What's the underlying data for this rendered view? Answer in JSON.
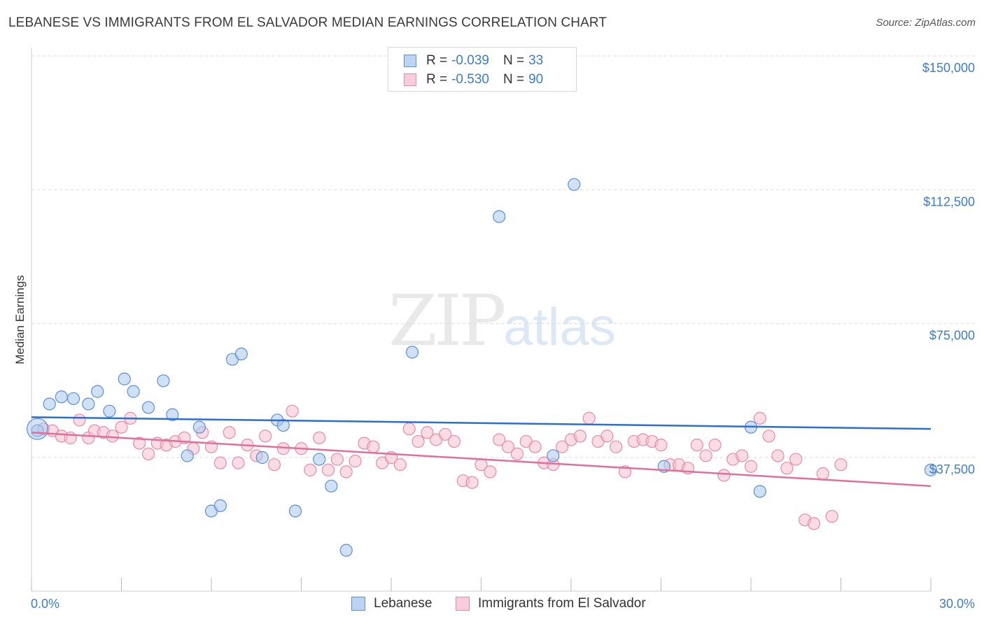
{
  "title": "LEBANESE VS IMMIGRANTS FROM EL SALVADOR MEDIAN EARNINGS CORRELATION CHART",
  "source": "Source: ZipAtlas.com",
  "watermark": {
    "zip": "ZIP",
    "atlas": "atlas"
  },
  "legend": {
    "rows": [
      {
        "r_label": "R =",
        "r_value": "-0.039",
        "n_label": "N =",
        "n_value": "33"
      },
      {
        "r_label": "R =",
        "r_value": "-0.530",
        "n_label": "N =",
        "n_value": "90"
      }
    ]
  },
  "bottom_legend": [
    "Lebanese",
    "Immigrants from El Salvador"
  ],
  "colors": {
    "blue_fill": "#a9c8ee",
    "blue_stroke": "#5b8fd6",
    "blue_line": "#2b6fd1",
    "pink_fill": "#f6bfd0",
    "pink_stroke": "#e88aa8",
    "pink_line": "#e0709a",
    "tick_text": "#3d7cc9",
    "grid": "#d9d9d9"
  },
  "chart_data": {
    "type": "scatter",
    "title": "LEBANESE VS IMMIGRANTS FROM EL SALVADOR MEDIAN EARNINGS CORRELATION CHART",
    "xlabel": "",
    "ylabel": "Median Earnings",
    "xlim": [
      0,
      30
    ],
    "ylim": [
      0,
      155000
    ],
    "x_tick_labels": [
      "0.0%",
      "30.0%"
    ],
    "y_ticks": [
      37500,
      75000,
      112500,
      150000
    ],
    "y_tick_labels": [
      "$37,500",
      "$75,000",
      "$112,500",
      "$150,000"
    ],
    "series": [
      {
        "name": "Lebanese",
        "r": -0.039,
        "n": 33,
        "trend": {
          "x": [
            0,
            30
          ],
          "y": [
            48800,
            45500
          ]
        },
        "points": [
          [
            0.2,
            45000
          ],
          [
            0.6,
            52500
          ],
          [
            1.0,
            54500
          ],
          [
            1.4,
            54000
          ],
          [
            1.9,
            52500
          ],
          [
            2.2,
            56000
          ],
          [
            2.6,
            50500
          ],
          [
            3.1,
            59500
          ],
          [
            3.4,
            56000
          ],
          [
            3.9,
            51500
          ],
          [
            4.4,
            59000
          ],
          [
            4.7,
            49500
          ],
          [
            5.2,
            38000
          ],
          [
            5.6,
            46000
          ],
          [
            6.0,
            22500
          ],
          [
            6.3,
            24000
          ],
          [
            6.7,
            65000
          ],
          [
            7.0,
            66500
          ],
          [
            7.7,
            37500
          ],
          [
            8.2,
            48000
          ],
          [
            8.4,
            46500
          ],
          [
            8.8,
            22500
          ],
          [
            9.6,
            37000
          ],
          [
            10.0,
            29500
          ],
          [
            10.5,
            11500
          ],
          [
            12.7,
            67000
          ],
          [
            15.6,
            105000
          ],
          [
            17.4,
            38000
          ],
          [
            18.1,
            114000
          ],
          [
            21.1,
            35000
          ],
          [
            24.0,
            46000
          ],
          [
            24.3,
            28000
          ],
          [
            30.0,
            34000
          ]
        ]
      },
      {
        "name": "Immigrants from El Salvador",
        "r": -0.53,
        "n": 90,
        "trend": {
          "x": [
            0,
            30
          ],
          "y": [
            44500,
            29500
          ]
        },
        "points": [
          [
            0.4,
            45500
          ],
          [
            0.7,
            45000
          ],
          [
            1.0,
            43500
          ],
          [
            1.3,
            43000
          ],
          [
            1.6,
            48000
          ],
          [
            1.9,
            43000
          ],
          [
            2.1,
            45000
          ],
          [
            2.4,
            44500
          ],
          [
            2.7,
            43500
          ],
          [
            3.0,
            46000
          ],
          [
            3.3,
            48500
          ],
          [
            3.6,
            41500
          ],
          [
            3.9,
            38500
          ],
          [
            4.2,
            41500
          ],
          [
            4.5,
            41000
          ],
          [
            4.8,
            42000
          ],
          [
            5.1,
            43000
          ],
          [
            5.4,
            40000
          ],
          [
            5.7,
            44500
          ],
          [
            6.0,
            40500
          ],
          [
            6.3,
            36000
          ],
          [
            6.6,
            44500
          ],
          [
            6.9,
            36000
          ],
          [
            7.2,
            41000
          ],
          [
            7.5,
            38000
          ],
          [
            7.8,
            43500
          ],
          [
            8.1,
            35500
          ],
          [
            8.4,
            40000
          ],
          [
            8.7,
            50500
          ],
          [
            9.0,
            40000
          ],
          [
            9.3,
            34000
          ],
          [
            9.6,
            43000
          ],
          [
            9.9,
            34000
          ],
          [
            10.2,
            37000
          ],
          [
            10.5,
            33500
          ],
          [
            10.8,
            36500
          ],
          [
            11.1,
            41500
          ],
          [
            11.4,
            40500
          ],
          [
            11.7,
            36000
          ],
          [
            12.0,
            37500
          ],
          [
            12.3,
            35500
          ],
          [
            12.6,
            45500
          ],
          [
            12.9,
            42000
          ],
          [
            13.2,
            44500
          ],
          [
            13.5,
            42500
          ],
          [
            13.8,
            44000
          ],
          [
            14.1,
            42000
          ],
          [
            14.4,
            31000
          ],
          [
            14.7,
            30500
          ],
          [
            15.0,
            35500
          ],
          [
            15.3,
            33500
          ],
          [
            15.6,
            42500
          ],
          [
            15.9,
            40500
          ],
          [
            16.2,
            38500
          ],
          [
            16.5,
            42000
          ],
          [
            16.8,
            40500
          ],
          [
            17.1,
            36000
          ],
          [
            17.4,
            35500
          ],
          [
            17.7,
            40500
          ],
          [
            18.0,
            42500
          ],
          [
            18.3,
            43500
          ],
          [
            18.6,
            48500
          ],
          [
            18.9,
            42000
          ],
          [
            19.2,
            43500
          ],
          [
            19.5,
            40500
          ],
          [
            19.8,
            33500
          ],
          [
            20.1,
            42000
          ],
          [
            20.4,
            42500
          ],
          [
            20.7,
            42000
          ],
          [
            21.0,
            41000
          ],
          [
            21.3,
            35500
          ],
          [
            21.6,
            35500
          ],
          [
            21.9,
            34500
          ],
          [
            22.2,
            41000
          ],
          [
            22.5,
            38000
          ],
          [
            22.8,
            41000
          ],
          [
            23.1,
            32500
          ],
          [
            23.4,
            37000
          ],
          [
            23.7,
            38000
          ],
          [
            24.0,
            35000
          ],
          [
            24.3,
            48500
          ],
          [
            24.6,
            43500
          ],
          [
            24.9,
            38000
          ],
          [
            25.2,
            34500
          ],
          [
            25.5,
            37000
          ],
          [
            25.8,
            20000
          ],
          [
            26.1,
            19000
          ],
          [
            26.4,
            33000
          ],
          [
            26.7,
            21000
          ],
          [
            27.0,
            35500
          ]
        ]
      }
    ]
  }
}
